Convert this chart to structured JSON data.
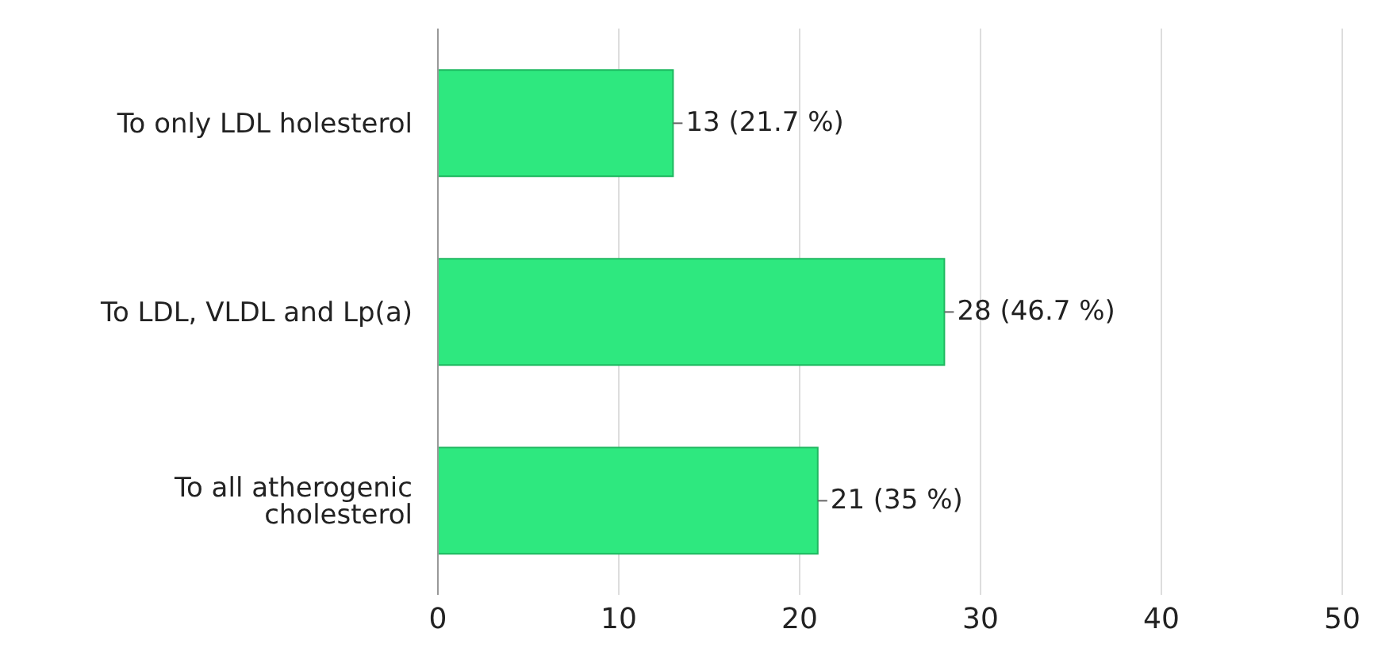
{
  "chart_data": {
    "type": "bar",
    "orientation": "horizontal",
    "categories": [
      "To only LDL holesterol",
      "To LDL, VLDL and Lp(a)",
      "To all atherogenic cholesterol"
    ],
    "values": [
      13,
      28,
      21
    ],
    "value_labels": [
      "13 (21.7 %)",
      "28 (46.7 %)",
      "21 (35 %)"
    ],
    "color": "#2ee87f",
    "xlim": [
      0,
      50
    ],
    "xticks": [
      0,
      10,
      20,
      30,
      40,
      50
    ],
    "grid": "x"
  }
}
